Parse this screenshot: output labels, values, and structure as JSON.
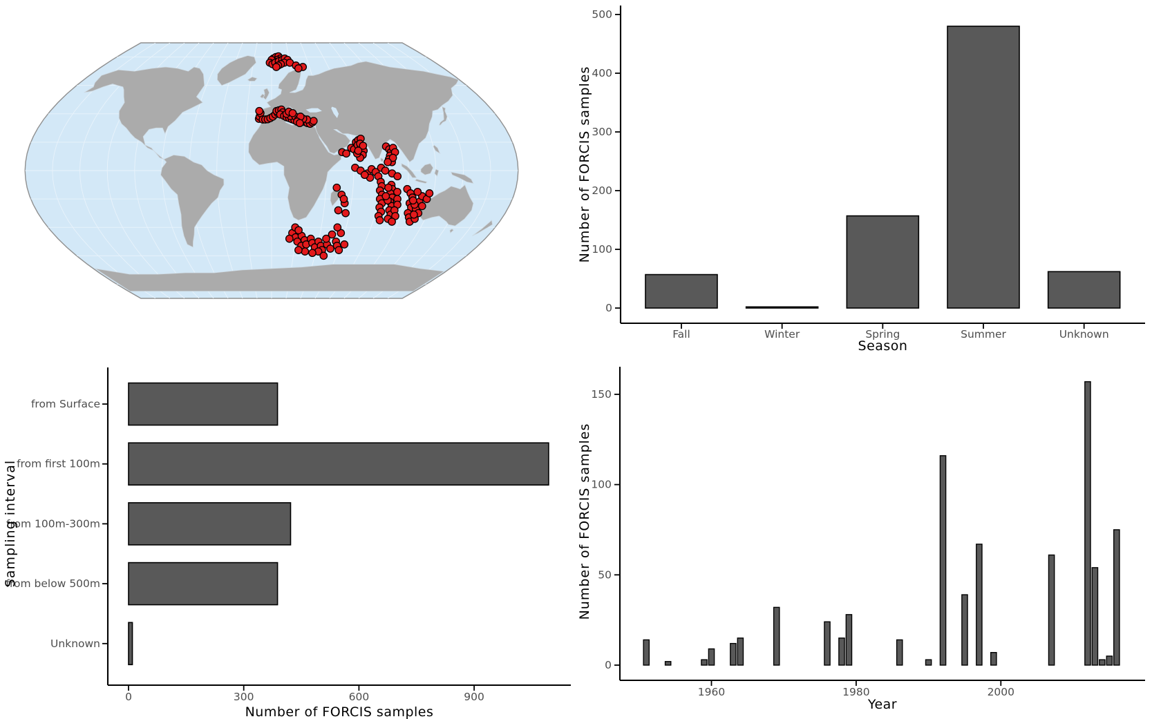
{
  "figure": {
    "background": "#ffffff"
  },
  "map": {
    "description": "World map with FORCIS sample locations",
    "ocean_color": "#d3e8f7",
    "graticule_color": "#e9f3fb",
    "land_color": "#ababab",
    "land_border_color": "#cdd9e2",
    "outline_color": "#8f8f8f",
    "marker_color": "#e31a1c",
    "marker_outline": "#000000",
    "points_lonlat": [
      [
        2,
        79
      ],
      [
        5,
        80
      ],
      [
        8,
        80.5
      ],
      [
        10,
        79
      ],
      [
        6,
        78
      ],
      [
        3,
        77
      ],
      [
        0,
        78
      ],
      [
        -2,
        76
      ],
      [
        1,
        75
      ],
      [
        4,
        76
      ],
      [
        8,
        77
      ],
      [
        12,
        78
      ],
      [
        15,
        79
      ],
      [
        18,
        78
      ],
      [
        14,
        76
      ],
      [
        10,
        75
      ],
      [
        7,
        74
      ],
      [
        20,
        76
      ],
      [
        26,
        74
      ],
      [
        33,
        73
      ],
      [
        28,
        72
      ],
      [
        5,
        73
      ],
      [
        -10,
        36.5
      ],
      [
        -9.5,
        38
      ],
      [
        -9,
        40.5
      ],
      [
        -10,
        42
      ],
      [
        -7,
        36
      ],
      [
        -5,
        36
      ],
      [
        -3,
        36.2
      ],
      [
        -1,
        37
      ],
      [
        1,
        38
      ],
      [
        3,
        39.5
      ],
      [
        5,
        40.5
      ],
      [
        4,
        42
      ],
      [
        6,
        42.5
      ],
      [
        8,
        43
      ],
      [
        9,
        41
      ],
      [
        7,
        39.5
      ],
      [
        10,
        38.5
      ],
      [
        12,
        37.5
      ],
      [
        14,
        37
      ],
      [
        16,
        36.2
      ],
      [
        18,
        35.5
      ],
      [
        15,
        38.5
      ],
      [
        19,
        38
      ],
      [
        12,
        40
      ],
      [
        14,
        41.5
      ],
      [
        17,
        40.5
      ],
      [
        21,
        36
      ],
      [
        24,
        35
      ],
      [
        26,
        34.3
      ],
      [
        28,
        33.5
      ],
      [
        30,
        33
      ],
      [
        32,
        34
      ],
      [
        33,
        35
      ],
      [
        28,
        36
      ],
      [
        25,
        36.5
      ],
      [
        23,
        38
      ],
      [
        20,
        34.5
      ],
      [
        22,
        33.5
      ],
      [
        52,
        13
      ],
      [
        55,
        12
      ],
      [
        59,
        16
      ],
      [
        61,
        15
      ],
      [
        63,
        20
      ],
      [
        65,
        21.5
      ],
      [
        67,
        22.5
      ],
      [
        64,
        18
      ],
      [
        66,
        16
      ],
      [
        68,
        14
      ],
      [
        67,
        11
      ],
      [
        65,
        9
      ],
      [
        63,
        12
      ],
      [
        66,
        19
      ],
      [
        68,
        17.5
      ],
      [
        64,
        14
      ],
      [
        85,
        17
      ],
      [
        87,
        15
      ],
      [
        88,
        13
      ],
      [
        87,
        10.5
      ],
      [
        86,
        8
      ],
      [
        88,
        6
      ],
      [
        90,
        16
      ],
      [
        91,
        13
      ],
      [
        89,
        9
      ],
      [
        85,
        6
      ],
      [
        61,
        2
      ],
      [
        65,
        0
      ],
      [
        70,
        -2
      ],
      [
        73,
        1
      ],
      [
        76,
        -1
      ],
      [
        80,
        2
      ],
      [
        83,
        0
      ],
      [
        78,
        -4
      ],
      [
        72,
        -5
      ],
      [
        68,
        -3
      ],
      [
        88,
        -2
      ],
      [
        92,
        -4
      ],
      [
        80,
        -8
      ],
      [
        81,
        -11
      ],
      [
        80,
        -14
      ],
      [
        82,
        -17
      ],
      [
        81,
        -20
      ],
      [
        83,
        -23
      ],
      [
        82,
        -26
      ],
      [
        84,
        -29
      ],
      [
        83,
        -32
      ],
      [
        85,
        -35
      ],
      [
        88,
        -10
      ],
      [
        89,
        -13
      ],
      [
        88,
        -16
      ],
      [
        90,
        -19
      ],
      [
        89,
        -22
      ],
      [
        91,
        -25
      ],
      [
        90,
        -28
      ],
      [
        92,
        -31
      ],
      [
        91,
        -34
      ],
      [
        86,
        -12
      ],
      [
        87,
        -21
      ],
      [
        85,
        -18
      ],
      [
        93,
        -15
      ],
      [
        94,
        -20
      ],
      [
        95,
        -24
      ],
      [
        94,
        -28
      ],
      [
        96,
        -32
      ],
      [
        95,
        -36
      ],
      [
        48,
        -12
      ],
      [
        52,
        -17
      ],
      [
        55,
        -23
      ],
      [
        51,
        -28
      ],
      [
        57,
        -30
      ],
      [
        54,
        -20
      ],
      [
        100,
        -13
      ],
      [
        103,
        -16
      ],
      [
        105,
        -19
      ],
      [
        104,
        -23
      ],
      [
        106,
        -26
      ],
      [
        105,
        -30
      ],
      [
        107,
        -33
      ],
      [
        109,
        -36
      ],
      [
        110,
        -27
      ],
      [
        111,
        -22
      ],
      [
        112,
        -18
      ],
      [
        108,
        -15
      ],
      [
        113,
        -30
      ],
      [
        112,
        -34
      ],
      [
        114,
        -25
      ],
      [
        110,
        -31
      ],
      [
        108,
        -24
      ],
      [
        106,
        -21
      ],
      [
        116,
        -20
      ],
      [
        117,
        -16
      ],
      [
        17,
        -44
      ],
      [
        20,
        -47
      ],
      [
        15,
        -48
      ],
      [
        22,
        -50
      ],
      [
        25,
        -46
      ],
      [
        28,
        -49
      ],
      [
        26,
        -53
      ],
      [
        30,
        -52
      ],
      [
        33,
        -48
      ],
      [
        35,
        -51
      ],
      [
        38,
        -54
      ],
      [
        40,
        -50
      ],
      [
        43,
        -53
      ],
      [
        45,
        -56
      ],
      [
        48,
        -52
      ],
      [
        52,
        -55
      ],
      [
        55,
        -50
      ],
      [
        57,
        -53
      ],
      [
        60,
        -56
      ],
      [
        63,
        -52
      ],
      [
        57,
        -44
      ],
      [
        53,
        -40
      ],
      [
        50,
        -45
      ],
      [
        46,
        -48
      ],
      [
        42,
        -57
      ],
      [
        37,
        -58
      ],
      [
        30,
        -57
      ],
      [
        24,
        -56
      ],
      [
        19,
        -40
      ],
      [
        22,
        -42
      ],
      [
        48,
        -60
      ]
    ]
  },
  "chart_data": [
    {
      "id": "season",
      "type": "bar",
      "title": "",
      "xlabel": "Season",
      "ylabel": "Number of FORCIS samples",
      "categories": [
        "Fall",
        "Winter",
        "Spring",
        "Summer",
        "Unknown"
      ],
      "values": [
        57,
        2,
        157,
        480,
        62
      ],
      "ylim": [
        0,
        512
      ],
      "yticks": [
        0,
        100,
        200,
        300,
        400,
        500
      ],
      "grid": false,
      "legend": "none",
      "bar_color": "#595959",
      "bar_border": "#000000",
      "axis_color": "#000000",
      "tick_label_color": "#4d4d4d"
    },
    {
      "id": "interval",
      "type": "hbar",
      "title": "",
      "xlabel": "Number of FORCIS samples",
      "ylabel": "Sampling interval",
      "categories": [
        "from Surface",
        "from first 100m",
        "from 100m-300m",
        "from below 500m",
        "Unknown"
      ],
      "values": [
        388,
        1094,
        422,
        388,
        10
      ],
      "xlim": [
        0,
        1150
      ],
      "xticks": [
        0,
        300,
        600,
        900
      ],
      "grid": false,
      "legend": "none",
      "bar_color": "#595959",
      "bar_border": "#000000",
      "axis_color": "#000000",
      "tick_label_color": "#4d4d4d"
    },
    {
      "id": "year",
      "type": "bar",
      "title": "",
      "xlabel": "Year",
      "ylabel": "Number of FORCIS samples",
      "x": [
        1951,
        1954,
        1959,
        1960,
        1963,
        1964,
        1969,
        1976,
        1978,
        1979,
        1986,
        1990,
        1992,
        1995,
        1997,
        1999,
        2007,
        2012,
        2013,
        2014,
        2015,
        2016
      ],
      "values": [
        14,
        2,
        3,
        9,
        12,
        15,
        32,
        24,
        15,
        28,
        14,
        3,
        116,
        39,
        67,
        7,
        61,
        157,
        54,
        3,
        5,
        75
      ],
      "xlim": [
        1947.5,
        2019.5
      ],
      "xticks": [
        1960,
        1980,
        2000
      ],
      "ylim": [
        0,
        165
      ],
      "yticks": [
        0,
        50,
        100,
        150
      ],
      "grid": false,
      "legend": "none",
      "bar_color": "#595959",
      "bar_border": "#000000",
      "axis_color": "#000000",
      "tick_label_color": "#4d4d4d"
    }
  ]
}
